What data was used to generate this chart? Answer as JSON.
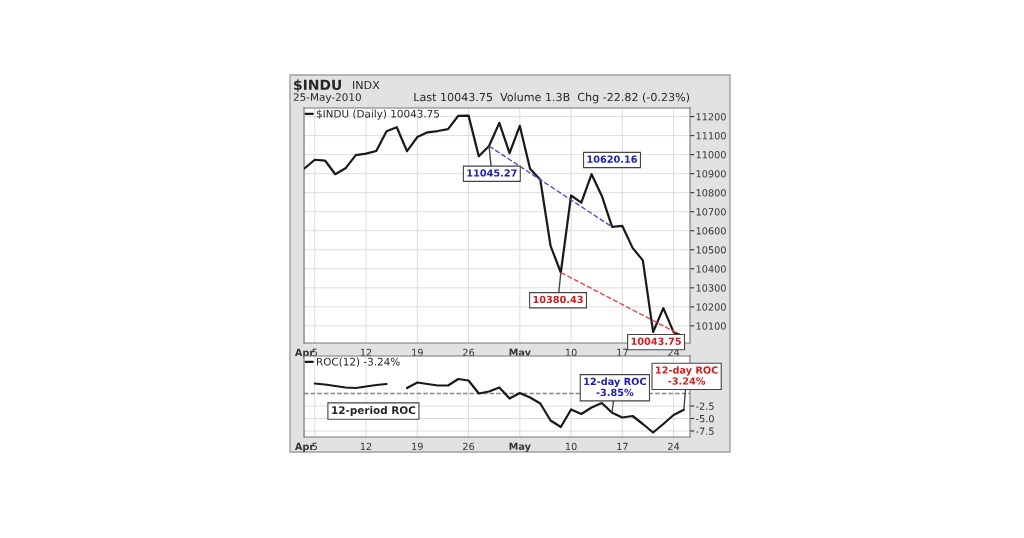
{
  "chart_data": [
    {
      "type": "line",
      "title": "$INDU",
      "subtitle": "25-May-2010",
      "categories": [
        "Apr",
        "5",
        null,
        null,
        null,
        null,
        "12",
        null,
        null,
        null,
        null,
        "19",
        null,
        null,
        null,
        null,
        "26",
        null,
        null,
        null,
        null,
        "May",
        null,
        null,
        null,
        null,
        "10",
        null,
        null,
        null,
        null,
        "17",
        null,
        null,
        null,
        null,
        "24",
        null
      ],
      "series": [
        {
          "name": "$INDU (Daily) 10043.75",
          "color": "#1a1a1a",
          "values": [
            10927,
            10973,
            10969,
            10897,
            10928,
            10997,
            11005,
            11019,
            11123,
            11144,
            11018,
            11092,
            11117,
            11124,
            11134,
            11204,
            11205,
            10991,
            11045.27,
            11167,
            11008,
            11151,
            10926,
            10868,
            10520,
            10380.43,
            10785,
            10748,
            10897,
            10783,
            10620.16,
            10625,
            10510,
            10444,
            10068,
            10193,
            10067,
            10043.75
          ]
        },
        {
          "type": "line",
          "color": "#5050c8",
          "line_style": "dashed",
          "values": [
            null,
            null,
            null,
            null,
            null,
            null,
            null,
            null,
            null,
            null,
            null,
            null,
            null,
            null,
            null,
            null,
            null,
            null,
            11045.27,
            null,
            null,
            null,
            null,
            null,
            null,
            null,
            null,
            null,
            null,
            null,
            10620.16,
            null,
            null,
            null,
            null,
            null,
            null,
            null
          ]
        },
        {
          "type": "line",
          "color": "#e04848",
          "line_style": "dashed",
          "values": [
            null,
            null,
            null,
            null,
            null,
            null,
            null,
            null,
            null,
            null,
            null,
            null,
            null,
            null,
            null,
            null,
            null,
            null,
            null,
            null,
            null,
            null,
            null,
            null,
            null,
            10380.43,
            null,
            null,
            null,
            null,
            null,
            null,
            null,
            null,
            null,
            null,
            null,
            10043.75
          ]
        }
      ],
      "annotations": [
        "INDX",
        "Last 10043.75  Volume 1.3B  Chg -22.82 (-0.23%)",
        {
          "text": "11045.27",
          "y": 11045.27
        },
        "10620.16",
        {
          "text": "10380.43",
          "y": 10380.43
        },
        {
          "text": "10043.75",
          "y": 10043.75
        }
      ],
      "ylim": [
        10010,
        11245
      ],
      "yticks": [
        10100,
        10200,
        10300,
        10400,
        10500,
        10600,
        10700,
        10800,
        10900,
        11000,
        11100,
        11200
      ],
      "grid": true,
      "legend": "top left"
    },
    {
      "type": "line",
      "categories": [
        "Apr",
        "5",
        null,
        null,
        null,
        null,
        "12",
        null,
        null,
        null,
        null,
        "19",
        null,
        null,
        null,
        null,
        "26",
        null,
        null,
        null,
        null,
        "May",
        null,
        null,
        null,
        null,
        "10",
        null,
        null,
        null,
        null,
        "17",
        null,
        null,
        null,
        null,
        "24",
        null
      ],
      "series": [
        {
          "name": "ROC(12) -3.24%",
          "color": "#1a1a1a",
          "values": [
            null,
            2.0,
            1.8,
            1.5,
            1.2,
            1.1,
            1.4,
            1.7,
            1.9,
            null,
            1.1,
            2.2,
            1.9,
            1.6,
            1.6,
            2.9,
            2.6,
            0.0,
            0.4,
            1.2,
            -1.0,
            0.1,
            -0.8,
            -2.0,
            -5.4,
            -6.7,
            -3.2,
            -4.1,
            -2.8,
            -1.9,
            -3.85,
            -4.8,
            -4.5,
            -6.1,
            -7.8,
            -6.1,
            -4.3,
            -3.24
          ]
        }
      ],
      "annotations": [
        "12-period ROC",
        {
          "text": "12-day ROC\n-3.85%",
          "y": -3.85
        },
        {
          "text": "12-day ROC\n-3.24%",
          "y": -3.24
        }
      ],
      "ref_lines": [
        {
          "axis": "y",
          "value": 0,
          "color": "#888888",
          "line_style": "dashed"
        }
      ],
      "ylim": [
        -8.7,
        7.5
      ],
      "yticks": [
        -2.5,
        {
          "value": -5.0,
          "label": "-5.0"
        },
        -7.5
      ],
      "grid": true,
      "legend": "top left"
    }
  ]
}
